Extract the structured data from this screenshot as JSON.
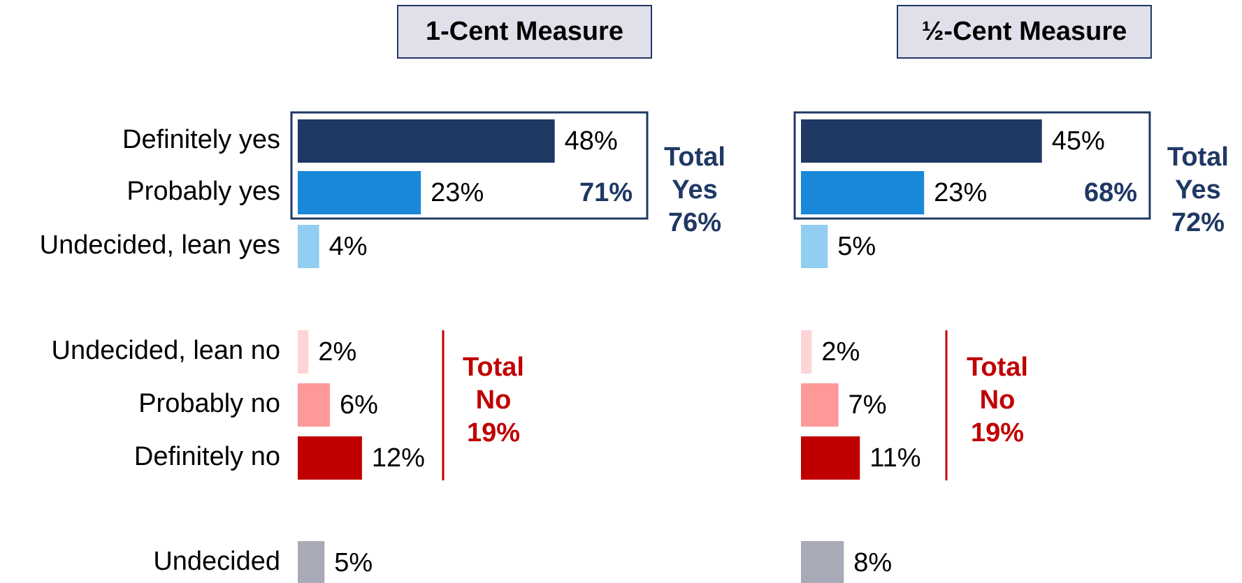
{
  "chart_data": [
    {
      "type": "bar",
      "orientation": "horizontal",
      "title": "1-Cent Measure",
      "categories": [
        "Definitely yes",
        "Probably yes",
        "Undecided, lean yes",
        "Undecided, lean no",
        "Probably no",
        "Definitely no",
        "Undecided"
      ],
      "values": [
        48,
        23,
        4,
        2,
        6,
        12,
        5
      ],
      "value_labels": [
        "48%",
        "23%",
        "4%",
        "2%",
        "6%",
        "12%",
        "5%"
      ],
      "colors": [
        "#1f3864",
        "#1a88d8",
        "#92cdf2",
        "#fdd5d7",
        "#fe9999",
        "#c00000",
        "#a9aab8"
      ],
      "subtotal": {
        "value": 71,
        "label": "71%"
      },
      "total_yes": {
        "label": "Total Yes",
        "value": 76,
        "value_label": "76%"
      },
      "total_no": {
        "label": "Total No",
        "value": 19,
        "value_label": "19%"
      }
    },
    {
      "type": "bar",
      "orientation": "horizontal",
      "title": "½-Cent Measure",
      "values": [
        45,
        23,
        5,
        2,
        7,
        11,
        8
      ],
      "value_labels": [
        "45%",
        "23%",
        "5%",
        "2%",
        "7%",
        "11%",
        "8%"
      ],
      "colors": [
        "#1f3864",
        "#1a88d8",
        "#92cdf2",
        "#fdd5d7",
        "#fe9999",
        "#c00000",
        "#a9aab8"
      ],
      "subtotal": {
        "value": 68,
        "label": "68%"
      },
      "total_yes": {
        "label": "Total Yes",
        "value": 72,
        "value_label": "72%"
      },
      "total_no": {
        "label": "Total No",
        "value": 19,
        "value_label": "19%"
      }
    }
  ]
}
